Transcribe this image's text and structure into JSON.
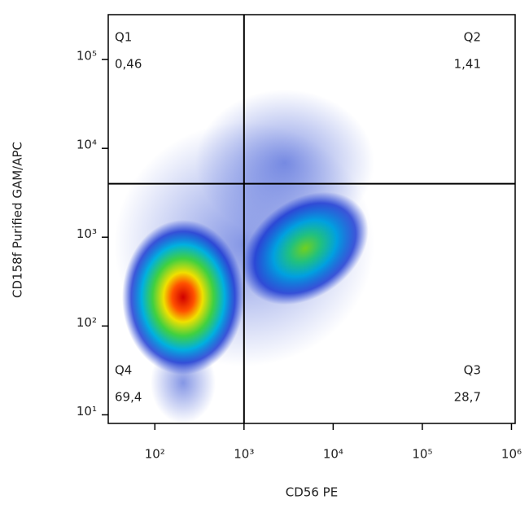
{
  "chart_data": {
    "type": "density",
    "xlabel": "CD56 PE",
    "ylabel": "CD158f Purified GAM/APC",
    "log_x": true,
    "log_y": true,
    "xlim": [
      30,
      1100000
    ],
    "ylim": [
      8,
      320000
    ],
    "xticks": [
      {
        "value": 100,
        "label": "10²"
      },
      {
        "value": 1000,
        "label": "10³"
      },
      {
        "value": 10000,
        "label": "10⁴"
      },
      {
        "value": 100000,
        "label": "10⁵"
      },
      {
        "value": 1000000,
        "label": "10⁶"
      }
    ],
    "yticks": [
      {
        "value": 10,
        "label": "10¹"
      },
      {
        "value": 100,
        "label": "10²"
      },
      {
        "value": 1000,
        "label": "10³"
      },
      {
        "value": 10000,
        "label": "10⁴"
      },
      {
        "value": 100000,
        "label": "10⁵"
      }
    ],
    "gate_x": 1000,
    "gate_y": 4000,
    "gate_color": "#000000",
    "quadrants": [
      "Q1",
      "Q2",
      "Q3",
      "Q4"
    ],
    "values": [
      0.46,
      1.41,
      28.7,
      69.4
    ],
    "value_labels": [
      "0,46",
      "1,41",
      "28,7",
      "69,4"
    ]
  }
}
